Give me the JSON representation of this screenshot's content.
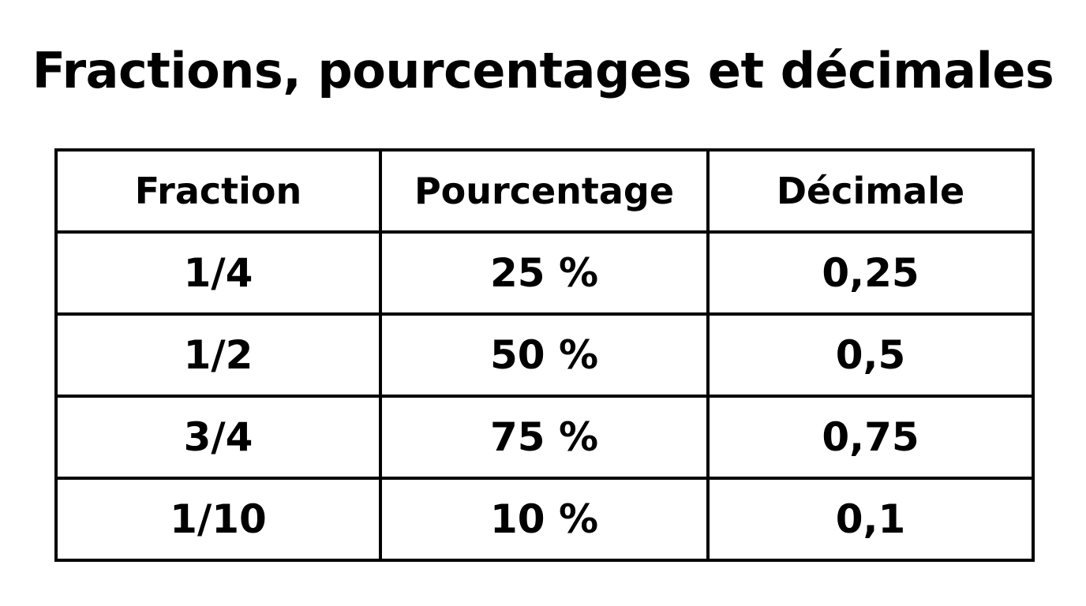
{
  "title": "Fractions, pourcentages et décimales",
  "table": {
    "headers": [
      "Fraction",
      "Pourcentage",
      "Décimale"
    ],
    "rows": [
      [
        "1/4",
        "25 %",
        "0,25"
      ],
      [
        "1/2",
        "50 %",
        "0,5"
      ],
      [
        "3/4",
        "75 %",
        "0,75"
      ],
      [
        "1/10",
        "10 %",
        "0,1"
      ]
    ]
  },
  "colors": {
    "background": "#ffffff",
    "text": "#000000",
    "border": "#000000"
  }
}
